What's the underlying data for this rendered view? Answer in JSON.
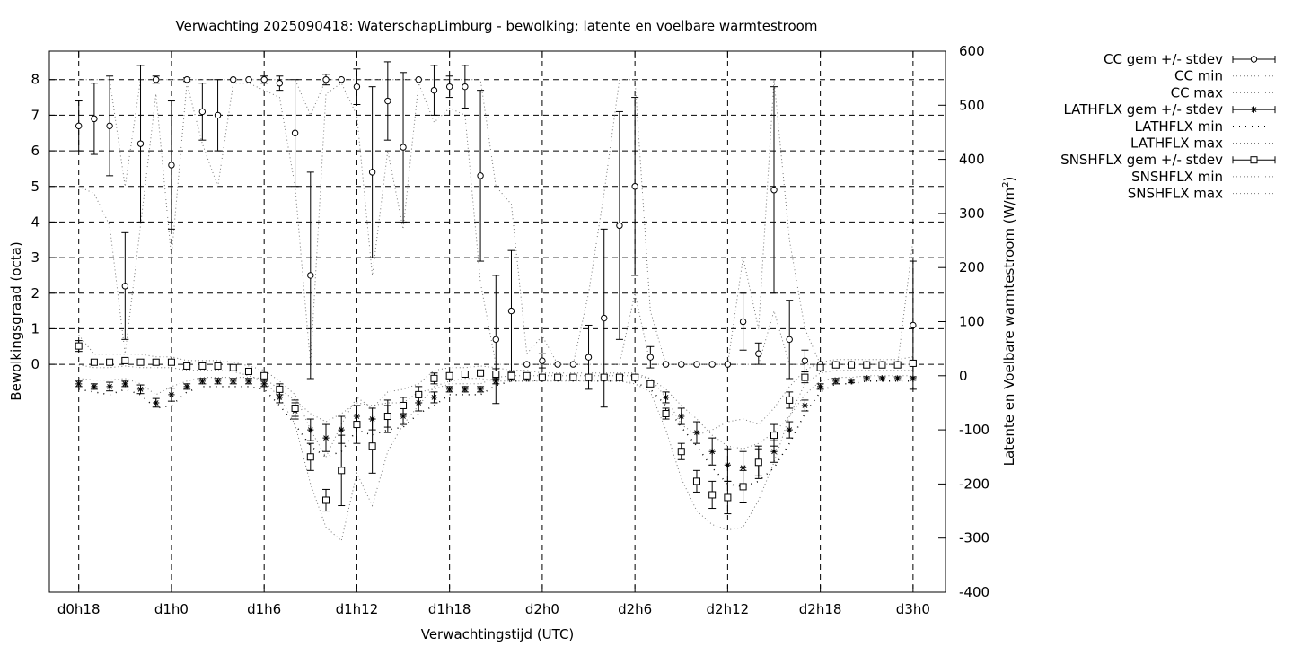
{
  "chart_data": {
    "type": "scatter",
    "title": "Verwachting 2025090418: WaterschapLimburg - bewolking; latente en voelbare warmtestroom",
    "xlabel": "Verwachtingstijd (UTC)",
    "ylabel_left": "Bewolkingsgraad (octa)",
    "ylabel_right_prefix": "Latente en Voelbare warmtestroom (W/m",
    "ylabel_right_sup": "2",
    "ylabel_right_suffix": ")",
    "x_ticks": [
      {
        "label": "d0h18",
        "h": 18
      },
      {
        "label": "d1h0",
        "h": 24
      },
      {
        "label": "d1h6",
        "h": 30
      },
      {
        "label": "d1h12",
        "h": 36
      },
      {
        "label": "d1h18",
        "h": 42
      },
      {
        "label": "d2h0",
        "h": 48
      },
      {
        "label": "d2h6",
        "h": 54
      },
      {
        "label": "d2h12",
        "h": 60
      },
      {
        "label": "d2h18",
        "h": 66
      },
      {
        "label": "d3h0",
        "h": 72
      }
    ],
    "xlim": [
      16.1,
      74.1
    ],
    "ylim_left": [
      -6.4,
      8.8
    ],
    "ylim_right": [
      -400,
      600
    ],
    "left_ticks": [
      0,
      1,
      2,
      3,
      4,
      5,
      6,
      7,
      8
    ],
    "right_ticks": [
      -400,
      -300,
      -200,
      -100,
      0,
      100,
      200,
      300,
      400,
      500,
      600
    ],
    "grid": true,
    "legend_position": "outside-right",
    "legend": [
      {
        "label": "CC gem +/- stdev",
        "style": "errorbar-circle"
      },
      {
        "label": "CC min",
        "style": "dotted"
      },
      {
        "label": "CC max",
        "style": "dotted"
      },
      {
        "label": "LATHFLX gem +/- stdev",
        "style": "errorbar-star"
      },
      {
        "label": "LATHFLX min",
        "style": "dots-sparse"
      },
      {
        "label": "LATHFLX max",
        "style": "dotted"
      },
      {
        "label": "SNSHFLX gem +/- stdev",
        "style": "errorbar-square"
      },
      {
        "label": "SNSHFLX min",
        "style": "dotted"
      },
      {
        "label": "SNSHFLX max",
        "style": "dotted"
      }
    ],
    "x": [
      18,
      19,
      20,
      21,
      22,
      23,
      24,
      25,
      26,
      27,
      28,
      29,
      30,
      31,
      32,
      33,
      34,
      35,
      36,
      37,
      38,
      39,
      40,
      41,
      42,
      43,
      44,
      45,
      46,
      47,
      48,
      49,
      50,
      51,
      52,
      53,
      54,
      55,
      56,
      57,
      58,
      59,
      60,
      61,
      62,
      63,
      64,
      65,
      66,
      67,
      68,
      69,
      70,
      71,
      72
    ],
    "series": [
      {
        "name": "CC gem +/- stdev",
        "axis": "left",
        "marker": "circle",
        "mean": [
          6.7,
          6.9,
          6.7,
          2.2,
          6.2,
          8.0,
          5.6,
          8.0,
          7.1,
          7.0,
          8.0,
          8.0,
          8.0,
          7.9,
          6.5,
          2.5,
          8.0,
          8.0,
          7.8,
          5.4,
          7.4,
          6.1,
          8.0,
          7.7,
          7.8,
          7.8,
          5.3,
          0.7,
          1.5,
          0.0,
          0.1,
          0.0,
          0.0,
          0.2,
          1.3,
          3.9,
          5.0,
          0.2,
          0.0,
          0.0,
          0.0,
          0.0,
          0.0,
          1.2,
          0.3,
          4.9,
          0.7,
          0.1,
          0.0,
          0.0,
          0.0,
          0.0,
          0.0,
          0.0,
          1.1
        ],
        "stdev": [
          0.7,
          1.0,
          1.4,
          1.5,
          2.2,
          0.1,
          1.8,
          0.05,
          0.8,
          1.0,
          0.0,
          0.0,
          0.1,
          0.2,
          1.5,
          2.9,
          0.15,
          0.0,
          0.5,
          2.4,
          1.1,
          2.1,
          0.0,
          0.7,
          0.3,
          0.6,
          2.4,
          1.8,
          1.7,
          0.0,
          0.2,
          0.0,
          0.0,
          0.9,
          2.5,
          3.2,
          2.5,
          0.3,
          0.0,
          0.0,
          0.0,
          0.0,
          0.0,
          0.8,
          0.3,
          2.9,
          1.1,
          0.3,
          0.0,
          0.0,
          0.0,
          0.0,
          0.0,
          0.0,
          1.8
        ]
      },
      {
        "name": "CC min",
        "axis": "left",
        "values": [
          5.0,
          4.8,
          3.9,
          0.3,
          3.9,
          7.6,
          3.0,
          7.9,
          6.2,
          5.0,
          7.9,
          7.9,
          7.7,
          7.5,
          5.0,
          0.0,
          7.6,
          7.9,
          7.0,
          2.5,
          6.0,
          3.8,
          7.9,
          6.8,
          7.2,
          7.0,
          2.3,
          0.0,
          0.0,
          0.0,
          0.0,
          0.0,
          0.0,
          0.0,
          0.0,
          0.0,
          2.0,
          0.0,
          0.0,
          0.0,
          0.0,
          0.0,
          0.0,
          0.0,
          0.0,
          1.5,
          0.0,
          0.0,
          0.0,
          0.0,
          0.0,
          0.0,
          0.0,
          0.0,
          0.0
        ]
      },
      {
        "name": "CC max",
        "axis": "left",
        "values": [
          8.0,
          8.0,
          8.0,
          5.0,
          8.0,
          8.0,
          8.0,
          8.0,
          8.0,
          8.0,
          8.0,
          8.0,
          8.0,
          8.0,
          8.0,
          7.0,
          8.0,
          8.0,
          8.0,
          8.0,
          8.0,
          8.0,
          8.0,
          8.0,
          8.0,
          8.0,
          8.0,
          5.0,
          4.5,
          0.3,
          0.8,
          0.0,
          0.0,
          2.0,
          4.8,
          8.0,
          8.0,
          1.5,
          0.0,
          0.0,
          0.0,
          0.0,
          0.0,
          3.0,
          1.0,
          8.0,
          3.5,
          1.0,
          0.0,
          0.0,
          0.0,
          0.0,
          0.0,
          0.0,
          3.5
        ]
      },
      {
        "name": "LATHFLX gem +/- stdev",
        "axis": "right",
        "marker": "star",
        "mean": [
          -15,
          -20,
          -20,
          -15,
          -25,
          -50,
          -35,
          -20,
          -10,
          -10,
          -10,
          -10,
          -15,
          -40,
          -65,
          -100,
          -115,
          -100,
          -75,
          -80,
          -75,
          -75,
          -50,
          -40,
          -25,
          -25,
          -25,
          -10,
          -5,
          -5,
          -5,
          -5,
          -5,
          -5,
          -5,
          -5,
          -5,
          -15,
          -40,
          -75,
          -105,
          -140,
          -165,
          -170,
          -160,
          -140,
          -100,
          -55,
          -20,
          -10,
          -10,
          -5,
          -5,
          -5,
          -5
        ],
        "stdev": [
          5,
          5,
          8,
          5,
          8,
          8,
          12,
          5,
          5,
          5,
          5,
          5,
          5,
          10,
          15,
          20,
          25,
          25,
          20,
          20,
          20,
          15,
          15,
          10,
          5,
          5,
          5,
          5,
          3,
          3,
          3,
          3,
          3,
          3,
          3,
          3,
          3,
          5,
          10,
          15,
          20,
          25,
          30,
          30,
          25,
          20,
          15,
          10,
          5,
          5,
          3,
          3,
          3,
          3,
          3
        ]
      },
      {
        "name": "LATHFLX min",
        "axis": "right",
        "values": [
          -25,
          -30,
          -35,
          -25,
          -35,
          -60,
          -55,
          -30,
          -20,
          -20,
          -20,
          -20,
          -25,
          -55,
          -90,
          -130,
          -150,
          -140,
          -100,
          -110,
          -100,
          -95,
          -70,
          -55,
          -35,
          -35,
          -35,
          -18,
          -10,
          -10,
          -8,
          -8,
          -8,
          -10,
          -10,
          -10,
          -12,
          -25,
          -55,
          -95,
          -130,
          -170,
          -200,
          -205,
          -195,
          -170,
          -125,
          -70,
          -30,
          -15,
          -15,
          -10,
          -10,
          -10,
          -10
        ]
      },
      {
        "name": "LATHFLX max",
        "axis": "right",
        "values": [
          -5,
          -8,
          -8,
          -5,
          -15,
          -35,
          -20,
          -10,
          -3,
          -3,
          -3,
          -3,
          -5,
          -25,
          -45,
          -70,
          -85,
          -70,
          -50,
          -55,
          -50,
          -50,
          -30,
          -25,
          -15,
          -15,
          -15,
          -3,
          0,
          0,
          0,
          0,
          0,
          0,
          0,
          0,
          0,
          -5,
          -25,
          -55,
          -80,
          -110,
          -130,
          -135,
          -125,
          -105,
          -75,
          -35,
          -10,
          -3,
          -3,
          0,
          0,
          0,
          0
        ]
      },
      {
        "name": "SNSHFLX gem +/- stdev",
        "axis": "right",
        "marker": "square",
        "mean": [
          55,
          25,
          25,
          28,
          25,
          25,
          25,
          18,
          18,
          18,
          15,
          8,
          0,
          -25,
          -60,
          -150,
          -230,
          -175,
          -90,
          -130,
          -75,
          -55,
          -35,
          -5,
          0,
          3,
          5,
          3,
          0,
          0,
          -3,
          -3,
          -3,
          -3,
          -3,
          -3,
          -3,
          -15,
          -70,
          -140,
          -195,
          -220,
          -225,
          -205,
          -160,
          -110,
          -45,
          -3,
          15,
          20,
          20,
          20,
          20,
          20,
          23
        ],
        "stdev": [
          10,
          5,
          5,
          5,
          5,
          5,
          5,
          5,
          5,
          5,
          5,
          5,
          5,
          10,
          15,
          25,
          20,
          65,
          35,
          50,
          30,
          15,
          15,
          10,
          5,
          5,
          5,
          10,
          5,
          5,
          5,
          5,
          5,
          5,
          5,
          5,
          5,
          5,
          10,
          15,
          20,
          25,
          30,
          30,
          30,
          20,
          15,
          10,
          5,
          5,
          5,
          5,
          5,
          5,
          5
        ]
      },
      {
        "name": "SNSHFLX min",
        "axis": "right",
        "values": [
          20,
          15,
          15,
          18,
          15,
          15,
          15,
          10,
          10,
          10,
          8,
          0,
          -10,
          -40,
          -90,
          -200,
          -280,
          -305,
          -180,
          -240,
          -140,
          -90,
          -55,
          -20,
          -10,
          -5,
          -5,
          -10,
          -10,
          -10,
          -10,
          -10,
          -10,
          -10,
          -10,
          -10,
          -15,
          -30,
          -100,
          -190,
          -250,
          -275,
          -285,
          -280,
          -230,
          -160,
          -75,
          -15,
          5,
          10,
          10,
          10,
          10,
          10,
          10
        ]
      },
      {
        "name": "SNSHFLX max",
        "axis": "right",
        "values": [
          75,
          40,
          40,
          40,
          40,
          35,
          35,
          28,
          28,
          28,
          25,
          18,
          10,
          -10,
          -35,
          -100,
          -150,
          -90,
          -40,
          -60,
          -30,
          -25,
          -15,
          10,
          15,
          15,
          18,
          15,
          10,
          10,
          5,
          5,
          5,
          5,
          5,
          5,
          5,
          -5,
          -40,
          -90,
          -110,
          -100,
          -85,
          -80,
          -90,
          -60,
          -20,
          10,
          25,
          30,
          30,
          30,
          30,
          30,
          35
        ]
      }
    ]
  }
}
